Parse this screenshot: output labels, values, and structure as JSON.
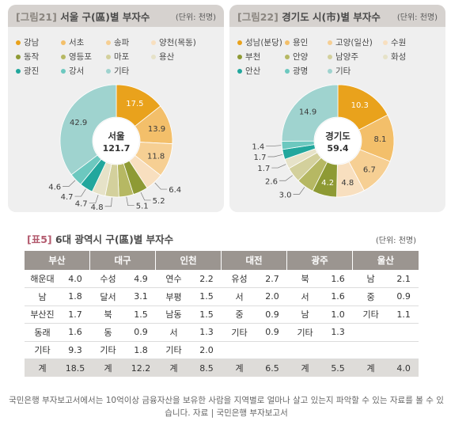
{
  "panel_left": {
    "tag": "[그림21]",
    "title": "서울 구(區)별 부자수",
    "unit": "(단위: 천명)",
    "legend": [
      {
        "label": "강남",
        "color": "#e9a21c"
      },
      {
        "label": "서초",
        "color": "#f3bf6a"
      },
      {
        "label": "송파",
        "color": "#f6cf93"
      },
      {
        "label": "양천(목동)",
        "color": "#f8dfbf"
      },
      {
        "label": "동작",
        "color": "#8e9a34"
      },
      {
        "label": "영등포",
        "color": "#b6b863"
      },
      {
        "label": "마포",
        "color": "#d3d09c"
      },
      {
        "label": "용산",
        "color": "#e6e2c8"
      },
      {
        "label": "광진",
        "color": "#22a79d"
      },
      {
        "label": "강서",
        "color": "#6cc8bf"
      },
      {
        "label": "기타",
        "color": "#9fd3cf"
      }
    ]
  },
  "panel_right": {
    "tag": "[그림22]",
    "title": "경기도 시(市)별 부자수",
    "unit": "(단위: 천명)",
    "legend": [
      {
        "label": "성남(분당)",
        "color": "#e9a21c"
      },
      {
        "label": "용인",
        "color": "#f3bf6a"
      },
      {
        "label": "고양(일산)",
        "color": "#f6cf93"
      },
      {
        "label": "수원",
        "color": "#f8dfbf"
      },
      {
        "label": "부천",
        "color": "#8e9a34"
      },
      {
        "label": "안양",
        "color": "#b6b863"
      },
      {
        "label": "남양주",
        "color": "#d3d09c"
      },
      {
        "label": "화성",
        "color": "#e6e2c8"
      },
      {
        "label": "안산",
        "color": "#22a79d"
      },
      {
        "label": "광명",
        "color": "#6cc8bf"
      },
      {
        "label": "기타",
        "color": "#9fd3cf"
      }
    ]
  },
  "chart_data": [
    {
      "type": "pie",
      "center_label": "서울",
      "center_value": "121.7",
      "categories": [
        "강남",
        "서초",
        "송파",
        "양천(목동)",
        "동작",
        "영등포",
        "마포",
        "용산",
        "광진",
        "강서",
        "기타"
      ],
      "values": [
        17.5,
        13.9,
        11.8,
        6.4,
        5.2,
        5.1,
        4.8,
        4.7,
        4.7,
        4.6,
        42.9
      ],
      "value_labels": [
        "17.5",
        "13.9",
        "11.8",
        "6.4",
        "5.2",
        "5.1",
        "4.8",
        "4.7",
        "4.7",
        "4.6",
        "42.9"
      ],
      "colors": [
        "#e9a21c",
        "#f3bf6a",
        "#f6cf93",
        "#f8dfbf",
        "#8e9a34",
        "#b6b863",
        "#d3d09c",
        "#e6e2c8",
        "#22a79d",
        "#6cc8bf",
        "#9fd3cf"
      ]
    },
    {
      "type": "pie",
      "center_label": "경기도",
      "center_value": "59.4",
      "categories": [
        "성남(분당)",
        "용인",
        "고양(일산)",
        "수원",
        "부천",
        "안양",
        "남양주",
        "화성",
        "안산",
        "광명",
        "기타"
      ],
      "values": [
        10.3,
        8.1,
        6.7,
        4.8,
        4.2,
        3.0,
        2.6,
        1.7,
        1.7,
        1.4,
        14.9
      ],
      "value_labels": [
        "10.3",
        "8.1",
        "6.7",
        "4.8",
        "4.2",
        "3.0",
        "2.6",
        "1.7",
        "1.7",
        "1.4",
        "14.9"
      ],
      "colors": [
        "#e9a21c",
        "#f3bf6a",
        "#f6cf93",
        "#f8dfbf",
        "#8e9a34",
        "#b6b863",
        "#d3d09c",
        "#e6e2c8",
        "#22a79d",
        "#6cc8bf",
        "#9fd3cf"
      ]
    }
  ],
  "table": {
    "tag": "[표5]",
    "title": "6대 광역시 구(區)별 부자수",
    "unit": "(단위: 천명)",
    "cities": [
      "부산",
      "대구",
      "인천",
      "대전",
      "광주",
      "울산"
    ],
    "rows": [
      [
        [
          "해운대",
          "4.0"
        ],
        [
          "수성",
          "4.9"
        ],
        [
          "연수",
          "2.2"
        ],
        [
          "유성",
          "2.7"
        ],
        [
          "북",
          "1.6"
        ],
        [
          "남",
          "2.1"
        ]
      ],
      [
        [
          "남",
          "1.8"
        ],
        [
          "달서",
          "3.1"
        ],
        [
          "부평",
          "1.5"
        ],
        [
          "서",
          "2.0"
        ],
        [
          "서",
          "1.6"
        ],
        [
          "중",
          "0.9"
        ]
      ],
      [
        [
          "부산진",
          "1.7"
        ],
        [
          "북",
          "1.5"
        ],
        [
          "남동",
          "1.5"
        ],
        [
          "중",
          "0.9"
        ],
        [
          "남",
          "1.0"
        ],
        [
          "기타",
          "1.1"
        ]
      ],
      [
        [
          "동래",
          "1.6"
        ],
        [
          "동",
          "0.9"
        ],
        [
          "서",
          "1.3"
        ],
        [
          "기타",
          "0.9"
        ],
        [
          "기타",
          "1.3"
        ],
        [
          "",
          ""
        ]
      ],
      [
        [
          "기타",
          "9.3"
        ],
        [
          "기타",
          "1.8"
        ],
        [
          "기타",
          "2.0"
        ],
        [
          "",
          ""
        ],
        [
          "",
          ""
        ],
        [
          "",
          ""
        ]
      ]
    ],
    "totals": [
      [
        "계",
        "18.5"
      ],
      [
        "계",
        "12.2"
      ],
      [
        "계",
        "8.5"
      ],
      [
        "계",
        "6.5"
      ],
      [
        "계",
        "5.5"
      ],
      [
        "계",
        "4.0"
      ]
    ]
  },
  "footnote": "국민은행 부자보고서에서는 10억이상 금융자산을 보유한 사람을 지역별로 얼마나 살고 있는지 파악할 수 있는 자료를 볼 수 있습니다. 자료 | 국민은행 부자보고서"
}
